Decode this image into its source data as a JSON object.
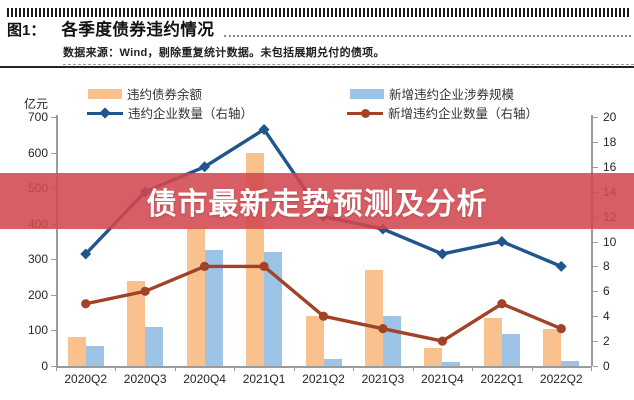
{
  "header": {
    "figure_label": "图1：",
    "title": "各季度债券违约情况",
    "source_note": "数据来源：Wind，剔除重复统计数据。未包括展期兑付的债项。"
  },
  "overlay": {
    "text": "债市最新走势预测及分析",
    "background": "rgba(211,72,80,0.88)",
    "text_color": "#ffffff"
  },
  "chart_data": {
    "type": "combo-bar-line",
    "categories": [
      "2020Q2",
      "2020Q3",
      "2020Q4",
      "2021Q1",
      "2021Q2",
      "2021Q3",
      "2021Q4",
      "2022Q1",
      "2022Q2"
    ],
    "series": [
      {
        "name": "违约债券余额",
        "type": "bar",
        "axis": "left",
        "color": "#f9c18d",
        "values": [
          82,
          238,
          388,
          600,
          140,
          270,
          52,
          135,
          105
        ]
      },
      {
        "name": "新增违约企业涉券规模",
        "type": "bar",
        "axis": "left",
        "color": "#9dc3e6",
        "values": [
          55,
          110,
          325,
          320,
          20,
          140,
          10,
          90,
          15
        ]
      },
      {
        "name": "违约企业数量（右轴）",
        "type": "line",
        "marker": "diamond",
        "axis": "right",
        "color": "#21568c",
        "values": [
          9,
          14,
          16,
          19,
          12,
          11,
          9,
          10,
          8
        ]
      },
      {
        "name": "新增违约企业数量（右轴）",
        "type": "line",
        "marker": "circle",
        "axis": "right",
        "color": "#a04328",
        "values": [
          5,
          6,
          8,
          8,
          4,
          3,
          2,
          5,
          3
        ]
      }
    ],
    "left_axis": {
      "unit": "亿元",
      "min": 0,
      "max": 700,
      "step": 100
    },
    "right_axis": {
      "min": 0,
      "max": 20,
      "step": 2
    },
    "legend_position": "top",
    "grid": false
  }
}
